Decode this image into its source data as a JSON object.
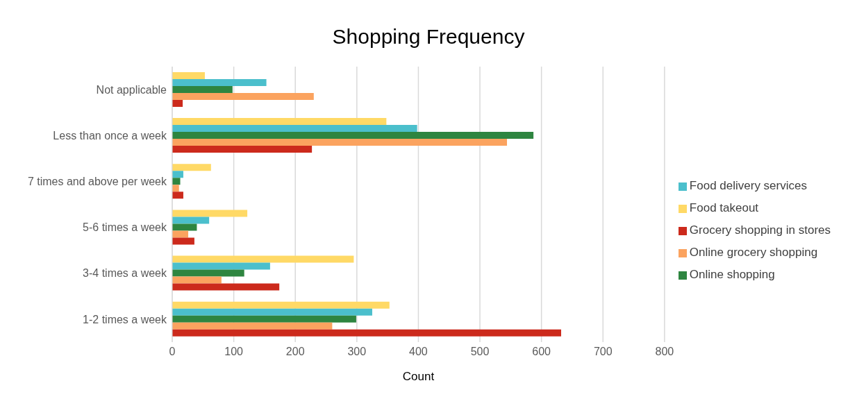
{
  "chart_data": {
    "type": "bar",
    "orientation": "horizontal",
    "title": "Shopping Frequency",
    "xlabel": "Count",
    "categories": [
      "Not applicable",
      "Less than once a week",
      "7 times and above per week",
      "5-6 times a week",
      "3-4 times a week",
      "1-2 times a week"
    ],
    "series": [
      {
        "name": "Food takeout",
        "color": "#ffd966",
        "values": [
          53,
          348,
          63,
          122,
          295,
          353
        ]
      },
      {
        "name": "Food delivery services",
        "color": "#4bbfcc",
        "values": [
          153,
          398,
          18,
          60,
          159,
          325
        ]
      },
      {
        "name": "Online shopping",
        "color": "#2e8540",
        "values": [
          98,
          587,
          13,
          40,
          117,
          299
        ]
      },
      {
        "name": "Online grocery shopping",
        "color": "#fba35f",
        "values": [
          230,
          544,
          11,
          26,
          80,
          260
        ]
      },
      {
        "name": "Grocery shopping in stores",
        "color": "#cc2a1c",
        "values": [
          17,
          227,
          18,
          36,
          174,
          632
        ]
      }
    ],
    "xlim": [
      0,
      800
    ],
    "xticks": [
      0,
      100,
      200,
      300,
      400,
      500,
      600,
      700,
      800
    ],
    "grid": "x",
    "legend": "right"
  }
}
